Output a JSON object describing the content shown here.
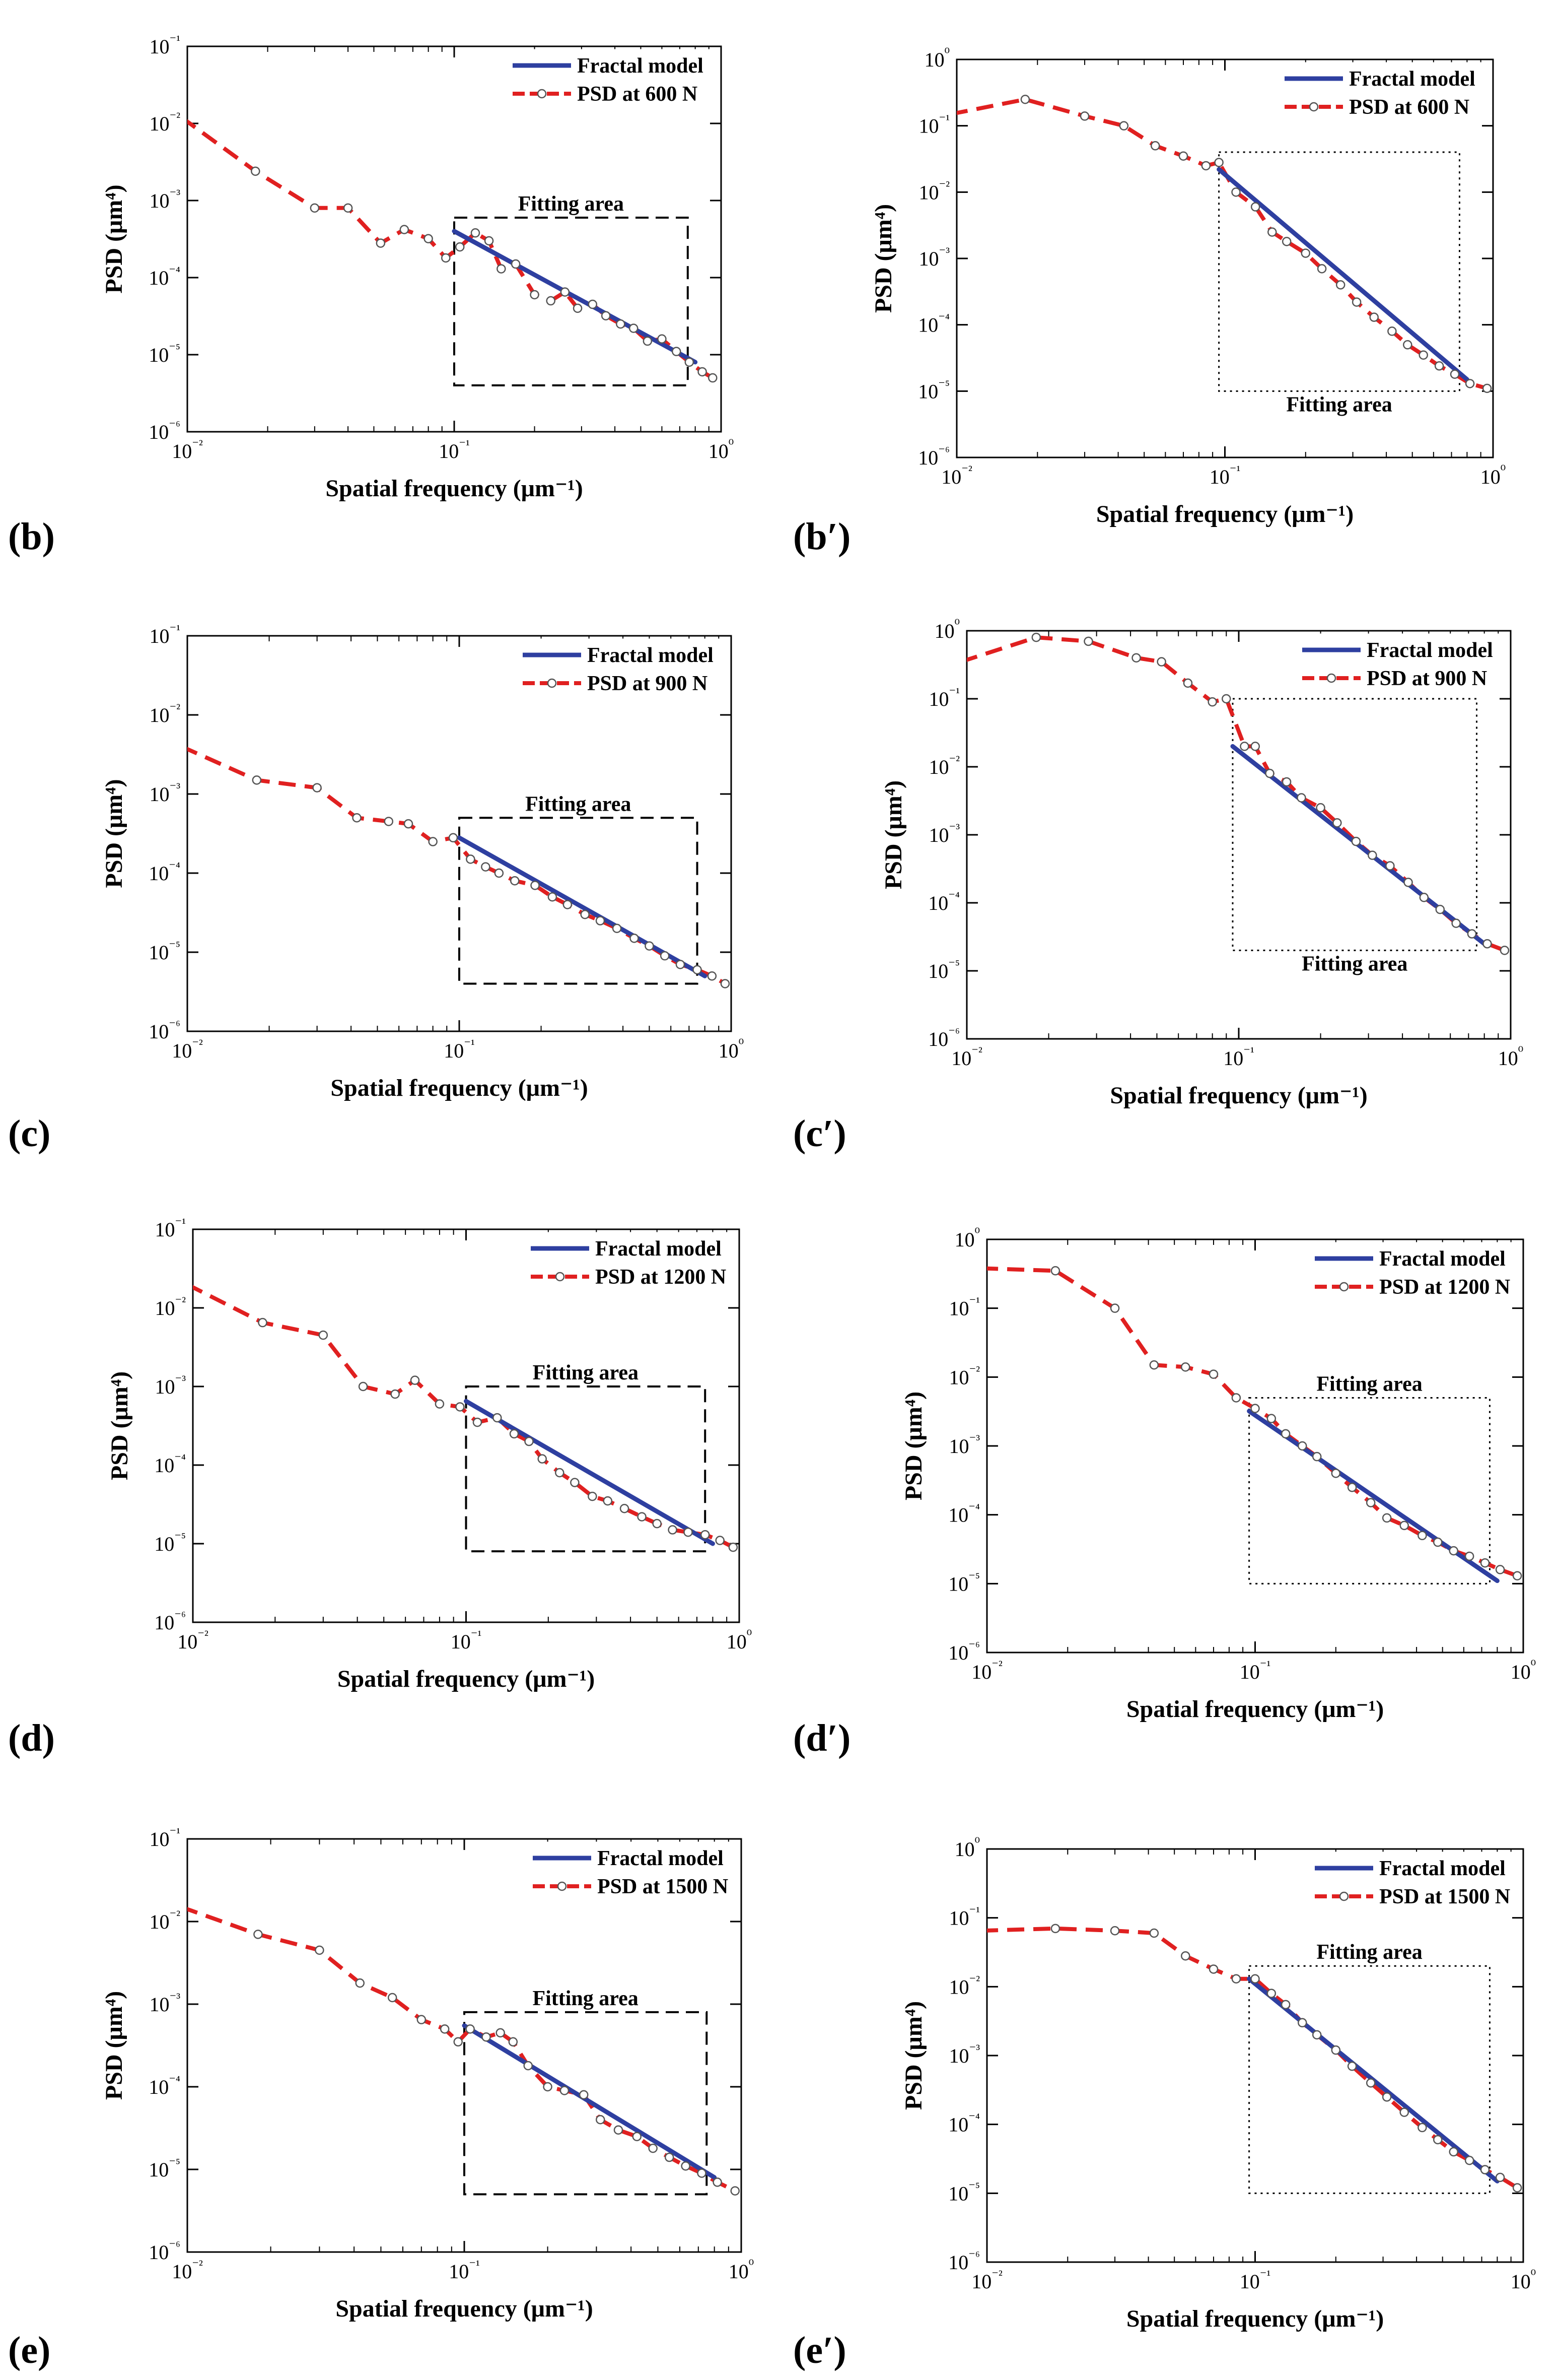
{
  "figure_title": "",
  "chart_data": [
    {
      "type": "line",
      "panel": "(b)",
      "panel_letter": "b",
      "panel_prime": "",
      "title": "",
      "xlabel": "Spatial frequency (μm⁻¹)",
      "ylabel": "PSD (μm⁴)",
      "xscale": "log",
      "yscale": "log",
      "xlim": [
        0.01,
        1
      ],
      "ylim": [
        1e-06,
        0.1
      ],
      "x_ticks": [
        "10⁻²",
        "10⁻¹",
        "10⁰"
      ],
      "y_ticks": [
        "10⁻⁶",
        "10⁻⁵",
        "10⁻⁴",
        "10⁻³",
        "10⁻²",
        "10⁻¹"
      ],
      "legend_position": "top-right",
      "fitting_area_label": "Fitting area",
      "fitting_box_style": "dashed",
      "fitting_label_position": "above",
      "fitting_area": {
        "x": [
          0.1,
          0.75
        ],
        "y": [
          4e-06,
          0.0006
        ]
      },
      "series": [
        {
          "name": "Fractal model",
          "color": "#2e3fa0",
          "x": [
            0.1,
            0.8
          ],
          "y": [
            0.0004,
            8e-06
          ]
        },
        {
          "name": "PSD at 600 N",
          "color": "#e02020",
          "x": [
            0.0095,
            0.018,
            0.03,
            0.04,
            0.053,
            0.065,
            0.08,
            0.093,
            0.105,
            0.12,
            0.135,
            0.15,
            0.17,
            0.2,
            0.23,
            0.26,
            0.29,
            0.33,
            0.37,
            0.42,
            0.47,
            0.53,
            0.6,
            0.68,
            0.76,
            0.85,
            0.93
          ],
          "y": [
            0.012,
            0.0024,
            0.0008,
            0.0008,
            0.00028,
            0.00042,
            0.00032,
            0.00018,
            0.00025,
            0.00038,
            0.0003,
            0.00013,
            0.00015,
            6e-05,
            5e-05,
            6.5e-05,
            4e-05,
            4.5e-05,
            3.2e-05,
            2.5e-05,
            2.2e-05,
            1.5e-05,
            1.6e-05,
            1.1e-05,
            8e-06,
            6e-06,
            5e-06
          ]
        }
      ]
    },
    {
      "type": "line",
      "panel": "(b′)",
      "panel_letter": "b",
      "panel_prime": "′",
      "title": "",
      "xlabel": "Spatial frequency (μm⁻¹)",
      "ylabel": "PSD (μm⁴)",
      "xscale": "log",
      "yscale": "log",
      "xlim": [
        0.01,
        1
      ],
      "ylim": [
        1e-06,
        1
      ],
      "x_ticks": [
        "10⁻²",
        "10⁻¹",
        "10⁰"
      ],
      "y_ticks": [
        "10⁻⁶",
        "10⁻⁵",
        "10⁻⁴",
        "10⁻³",
        "10⁻²",
        "10⁻¹",
        "10⁰"
      ],
      "legend_position": "top-right",
      "fitting_area_label": "Fitting area",
      "fitting_box_style": "dotted",
      "fitting_label_position": "below",
      "fitting_area": {
        "x": [
          0.095,
          0.75
        ],
        "y": [
          1e-05,
          0.04
        ]
      },
      "series": [
        {
          "name": "Fractal model",
          "color": "#2e3fa0",
          "x": [
            0.095,
            0.8
          ],
          "y": [
            0.022,
            1.5e-05
          ]
        },
        {
          "name": "PSD at 600 N",
          "color": "#e02020",
          "x": [
            0.0095,
            0.018,
            0.03,
            0.042,
            0.055,
            0.07,
            0.085,
            0.095,
            0.11,
            0.13,
            0.15,
            0.17,
            0.2,
            0.23,
            0.27,
            0.31,
            0.36,
            0.42,
            0.48,
            0.55,
            0.63,
            0.72,
            0.82,
            0.95
          ],
          "y": [
            0.15,
            0.25,
            0.14,
            0.1,
            0.05,
            0.035,
            0.025,
            0.028,
            0.01,
            0.006,
            0.0025,
            0.0018,
            0.0012,
            0.0007,
            0.0004,
            0.00022,
            0.00013,
            8e-05,
            5e-05,
            3.5e-05,
            2.4e-05,
            1.8e-05,
            1.3e-05,
            1.1e-05
          ]
        }
      ]
    },
    {
      "type": "line",
      "panel": "(c)",
      "panel_letter": "c",
      "panel_prime": "",
      "title": "",
      "xlabel": "Spatial frequency (μm⁻¹)",
      "ylabel": "PSD (μm⁴)",
      "xscale": "log",
      "yscale": "log",
      "xlim": [
        0.01,
        1
      ],
      "ylim": [
        1e-06,
        0.1
      ],
      "x_ticks": [
        "10⁻²",
        "10⁻¹",
        "10⁰"
      ],
      "y_ticks": [
        "10⁻⁶",
        "10⁻⁵",
        "10⁻⁴",
        "10⁻³",
        "10⁻²",
        "10⁻¹"
      ],
      "legend_position": "top-right",
      "fitting_area_label": "Fitting area",
      "fitting_box_style": "dashed",
      "fitting_label_position": "above",
      "fitting_area": {
        "x": [
          0.1,
          0.75
        ],
        "y": [
          4e-06,
          0.0005
        ]
      },
      "series": [
        {
          "name": "Fractal model",
          "color": "#2e3fa0",
          "x": [
            0.1,
            0.8
          ],
          "y": [
            0.00028,
            5e-06
          ]
        },
        {
          "name": "PSD at 900 N",
          "color": "#e02020",
          "x": [
            0.0095,
            0.018,
            0.03,
            0.042,
            0.055,
            0.065,
            0.08,
            0.095,
            0.11,
            0.125,
            0.14,
            0.16,
            0.19,
            0.22,
            0.25,
            0.29,
            0.33,
            0.38,
            0.44,
            0.5,
            0.57,
            0.65,
            0.75,
            0.85,
            0.95
          ],
          "y": [
            0.004,
            0.0015,
            0.0012,
            0.0005,
            0.00045,
            0.00042,
            0.00025,
            0.00028,
            0.00015,
            0.00012,
            0.0001,
            8e-05,
            7e-05,
            5e-05,
            4e-05,
            3e-05,
            2.5e-05,
            2e-05,
            1.5e-05,
            1.2e-05,
            9e-06,
            7e-06,
            6e-06,
            5e-06,
            4e-06
          ]
        }
      ]
    },
    {
      "type": "line",
      "panel": "(c′)",
      "panel_letter": "c",
      "panel_prime": "′",
      "title": "",
      "xlabel": "Spatial frequency (μm⁻¹)",
      "ylabel": "PSD (μm⁴)",
      "xscale": "log",
      "yscale": "log",
      "xlim": [
        0.01,
        1
      ],
      "ylim": [
        1e-06,
        1
      ],
      "x_ticks": [
        "10⁻²",
        "10⁻¹",
        "10⁰"
      ],
      "y_ticks": [
        "10⁻⁶",
        "10⁻⁵",
        "10⁻⁴",
        "10⁻³",
        "10⁻²",
        "10⁻¹",
        "10⁰"
      ],
      "legend_position": "top-right",
      "fitting_area_label": "Fitting area",
      "fitting_box_style": "dotted",
      "fitting_label_position": "below",
      "fitting_area": {
        "x": [
          0.095,
          0.75
        ],
        "y": [
          2e-05,
          0.1
        ]
      },
      "series": [
        {
          "name": "Fractal model",
          "color": "#2e3fa0",
          "x": [
            0.095,
            0.8
          ],
          "y": [
            0.02,
            2.5e-05
          ]
        },
        {
          "name": "PSD at 900 N",
          "color": "#e02020",
          "x": [
            0.0095,
            0.018,
            0.028,
            0.042,
            0.052,
            0.065,
            0.08,
            0.09,
            0.105,
            0.115,
            0.13,
            0.15,
            0.17,
            0.2,
            0.23,
            0.27,
            0.31,
            0.36,
            0.42,
            0.48,
            0.55,
            0.63,
            0.72,
            0.82,
            0.95
          ],
          "y": [
            0.35,
            0.8,
            0.7,
            0.4,
            0.35,
            0.17,
            0.09,
            0.1,
            0.02,
            0.02,
            0.008,
            0.006,
            0.0035,
            0.0025,
            0.0015,
            0.0008,
            0.0005,
            0.00035,
            0.0002,
            0.00012,
            8e-05,
            5e-05,
            3.5e-05,
            2.5e-05,
            2e-05
          ]
        }
      ]
    },
    {
      "type": "line",
      "panel": "(d)",
      "panel_letter": "d",
      "panel_prime": "",
      "title": "",
      "xlabel": "Spatial frequency (μm⁻¹)",
      "ylabel": "PSD (μm⁴)",
      "xscale": "log",
      "yscale": "log",
      "xlim": [
        0.01,
        1
      ],
      "ylim": [
        1e-06,
        0.1
      ],
      "x_ticks": [
        "10⁻²",
        "10⁻¹",
        "10⁰"
      ],
      "y_ticks": [
        "10⁻⁶",
        "10⁻⁵",
        "10⁻⁴",
        "10⁻³",
        "10⁻²",
        "10⁻¹"
      ],
      "legend_position": "top-right",
      "fitting_area_label": "Fitting area",
      "fitting_box_style": "dashed",
      "fitting_label_position": "above",
      "fitting_area": {
        "x": [
          0.1,
          0.75
        ],
        "y": [
          8e-06,
          0.001
        ]
      },
      "series": [
        {
          "name": "Fractal model",
          "color": "#2e3fa0",
          "x": [
            0.1,
            0.8
          ],
          "y": [
            0.00065,
            1e-05
          ]
        },
        {
          "name": "PSD at 1200 N",
          "color": "#e02020",
          "x": [
            0.0095,
            0.018,
            0.03,
            0.042,
            0.055,
            0.065,
            0.08,
            0.095,
            0.11,
            0.13,
            0.15,
            0.17,
            0.19,
            0.22,
            0.25,
            0.29,
            0.33,
            0.38,
            0.44,
            0.5,
            0.57,
            0.65,
            0.75,
            0.85,
            0.95
          ],
          "y": [
            0.02,
            0.0065,
            0.0045,
            0.001,
            0.0008,
            0.0012,
            0.0006,
            0.00055,
            0.00035,
            0.0004,
            0.00025,
            0.0002,
            0.00012,
            8e-05,
            6e-05,
            4e-05,
            3.5e-05,
            2.8e-05,
            2.2e-05,
            1.8e-05,
            1.5e-05,
            1.4e-05,
            1.3e-05,
            1.1e-05,
            9e-06
          ]
        }
      ]
    },
    {
      "type": "line",
      "panel": "(d′)",
      "panel_letter": "d",
      "panel_prime": "′",
      "title": "",
      "xlabel": "Spatial frequency (μm⁻¹)",
      "ylabel": "PSD (μm⁴)",
      "xscale": "log",
      "yscale": "log",
      "xlim": [
        0.01,
        1
      ],
      "ylim": [
        1e-06,
        1
      ],
      "x_ticks": [
        "10⁻²",
        "10⁻¹",
        "10⁰"
      ],
      "y_ticks": [
        "10⁻⁶",
        "10⁻⁵",
        "10⁻⁴",
        "10⁻³",
        "10⁻²",
        "10⁻¹",
        "10⁰"
      ],
      "legend_position": "top-right",
      "fitting_area_label": "Fitting area",
      "fitting_box_style": "dotted",
      "fitting_label_position": "above",
      "fitting_area": {
        "x": [
          0.095,
          0.75
        ],
        "y": [
          1e-05,
          0.005
        ]
      },
      "series": [
        {
          "name": "Fractal model",
          "color": "#2e3fa0",
          "x": [
            0.095,
            0.8
          ],
          "y": [
            0.0032,
            1.1e-05
          ]
        },
        {
          "name": "PSD at 1200 N",
          "color": "#e02020",
          "x": [
            0.0095,
            0.018,
            0.03,
            0.042,
            0.055,
            0.07,
            0.085,
            0.1,
            0.115,
            0.13,
            0.15,
            0.17,
            0.2,
            0.23,
            0.27,
            0.31,
            0.36,
            0.42,
            0.48,
            0.55,
            0.63,
            0.72,
            0.82,
            0.95
          ],
          "y": [
            0.38,
            0.35,
            0.1,
            0.015,
            0.014,
            0.011,
            0.005,
            0.0035,
            0.0025,
            0.0015,
            0.001,
            0.0007,
            0.0004,
            0.00025,
            0.00015,
            9e-05,
            7e-05,
            5e-05,
            4e-05,
            3e-05,
            2.5e-05,
            2e-05,
            1.6e-05,
            1.3e-05
          ]
        }
      ]
    },
    {
      "type": "line",
      "panel": "(e)",
      "panel_letter": "e",
      "panel_prime": "",
      "title": "",
      "xlabel": "Spatial frequency (μm⁻¹)",
      "ylabel": "PSD (μm⁴)",
      "xscale": "log",
      "yscale": "log",
      "xlim": [
        0.01,
        1
      ],
      "ylim": [
        1e-06,
        0.1
      ],
      "x_ticks": [
        "10⁻²",
        "10⁻¹",
        "10⁰"
      ],
      "y_ticks": [
        "10⁻⁶",
        "10⁻⁵",
        "10⁻⁴",
        "10⁻³",
        "10⁻²",
        "10⁻¹"
      ],
      "legend_position": "top-right",
      "fitting_area_label": "Fitting area",
      "fitting_box_style": "dashed",
      "fitting_label_position": "above",
      "fitting_area": {
        "x": [
          0.1,
          0.75
        ],
        "y": [
          5e-06,
          0.0008
        ]
      },
      "series": [
        {
          "name": "Fractal model",
          "color": "#2e3fa0",
          "x": [
            0.1,
            0.8
          ],
          "y": [
            0.00055,
            8e-06
          ]
        },
        {
          "name": "PSD at 1500 N",
          "color": "#e02020",
          "x": [
            0.0095,
            0.018,
            0.03,
            0.042,
            0.055,
            0.07,
            0.085,
            0.095,
            0.105,
            0.12,
            0.135,
            0.15,
            0.17,
            0.2,
            0.23,
            0.27,
            0.31,
            0.36,
            0.42,
            0.48,
            0.55,
            0.63,
            0.72,
            0.82,
            0.95
          ],
          "y": [
            0.015,
            0.007,
            0.0045,
            0.0018,
            0.0012,
            0.00065,
            0.0005,
            0.00035,
            0.0005,
            0.0004,
            0.00045,
            0.00035,
            0.00018,
            0.0001,
            9e-05,
            8e-05,
            4e-05,
            3e-05,
            2.5e-05,
            1.8e-05,
            1.4e-05,
            1.1e-05,
            9e-06,
            7e-06,
            5.5e-06
          ]
        }
      ]
    },
    {
      "type": "line",
      "panel": "(e′)",
      "panel_letter": "e",
      "panel_prime": "′",
      "title": "",
      "xlabel": "Spatial frequency (μm⁻¹)",
      "ylabel": "PSD (μm⁴)",
      "xscale": "log",
      "yscale": "log",
      "xlim": [
        0.01,
        1
      ],
      "ylim": [
        1e-06,
        1
      ],
      "x_ticks": [
        "10⁻²",
        "10⁻¹",
        "10⁰"
      ],
      "y_ticks": [
        "10⁻⁶",
        "10⁻⁵",
        "10⁻⁴",
        "10⁻³",
        "10⁻²",
        "10⁻¹",
        "10⁰"
      ],
      "legend_position": "top-right",
      "fitting_area_label": "Fitting area",
      "fitting_box_style": "dotted",
      "fitting_label_position": "above",
      "fitting_area": {
        "x": [
          0.095,
          0.75
        ],
        "y": [
          1e-05,
          0.02
        ]
      },
      "series": [
        {
          "name": "Fractal model",
          "color": "#2e3fa0",
          "x": [
            0.095,
            0.8
          ],
          "y": [
            0.013,
            1.5e-05
          ]
        },
        {
          "name": "PSD at 1500 N",
          "color": "#e02020",
          "x": [
            0.0095,
            0.018,
            0.03,
            0.042,
            0.055,
            0.07,
            0.085,
            0.1,
            0.115,
            0.13,
            0.15,
            0.17,
            0.2,
            0.23,
            0.27,
            0.31,
            0.36,
            0.42,
            0.48,
            0.55,
            0.63,
            0.72,
            0.82,
            0.95
          ],
          "y": [
            0.065,
            0.07,
            0.065,
            0.06,
            0.028,
            0.018,
            0.013,
            0.013,
            0.008,
            0.0055,
            0.003,
            0.002,
            0.0012,
            0.0007,
            0.0004,
            0.00025,
            0.00015,
            9e-05,
            6e-05,
            4e-05,
            3e-05,
            2.2e-05,
            1.7e-05,
            1.2e-05
          ]
        }
      ]
    }
  ]
}
